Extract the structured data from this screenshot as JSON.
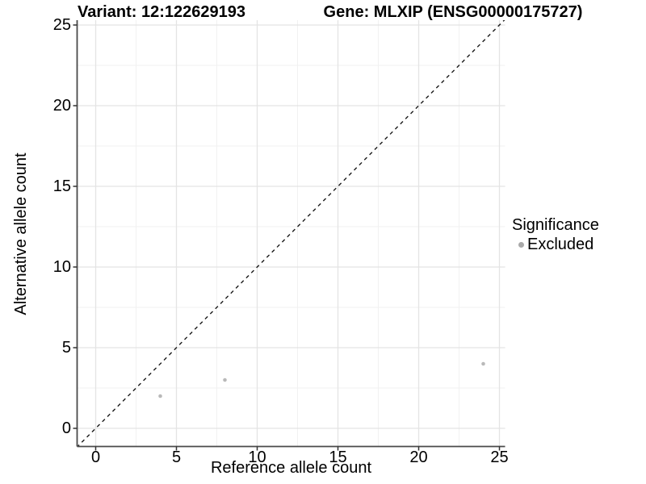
{
  "chart_data": {
    "type": "scatter",
    "title_left": "Variant: 12:122629193",
    "title_right": "Gene: MLXIP (ENSG00000175727)",
    "xlabel": "Reference allele count",
    "ylabel": "Alternative allele count",
    "xlim": [
      0,
      25
    ],
    "ylim": [
      0,
      25
    ],
    "xticks": [
      0,
      5,
      10,
      15,
      20,
      25
    ],
    "yticks": [
      0,
      5,
      10,
      15,
      20,
      25
    ],
    "x_minor": [
      2.5,
      7.5,
      12.5,
      17.5,
      22.5
    ],
    "y_minor": [
      2.5,
      7.5,
      12.5,
      17.5,
      22.5
    ],
    "grid": true,
    "series": [
      {
        "name": "Excluded",
        "color": "#b9b9b9",
        "points": [
          [
            4,
            2
          ],
          [
            8,
            3
          ],
          [
            24,
            4
          ]
        ]
      }
    ],
    "reference_line": {
      "type": "identity y=x",
      "style": "dashed",
      "color": "#1a1a1a"
    },
    "legend": {
      "position": "right",
      "title": "Significance",
      "entries": [
        {
          "label": "Excluded",
          "color": "#a9a9a9"
        }
      ]
    },
    "colors": {
      "major_grid": "#e4e4e4",
      "minor_grid": "#f1f1f1",
      "axis_line": "#4a4a4a",
      "tick_mark": "#333333",
      "point": "#b9b9b9"
    }
  }
}
